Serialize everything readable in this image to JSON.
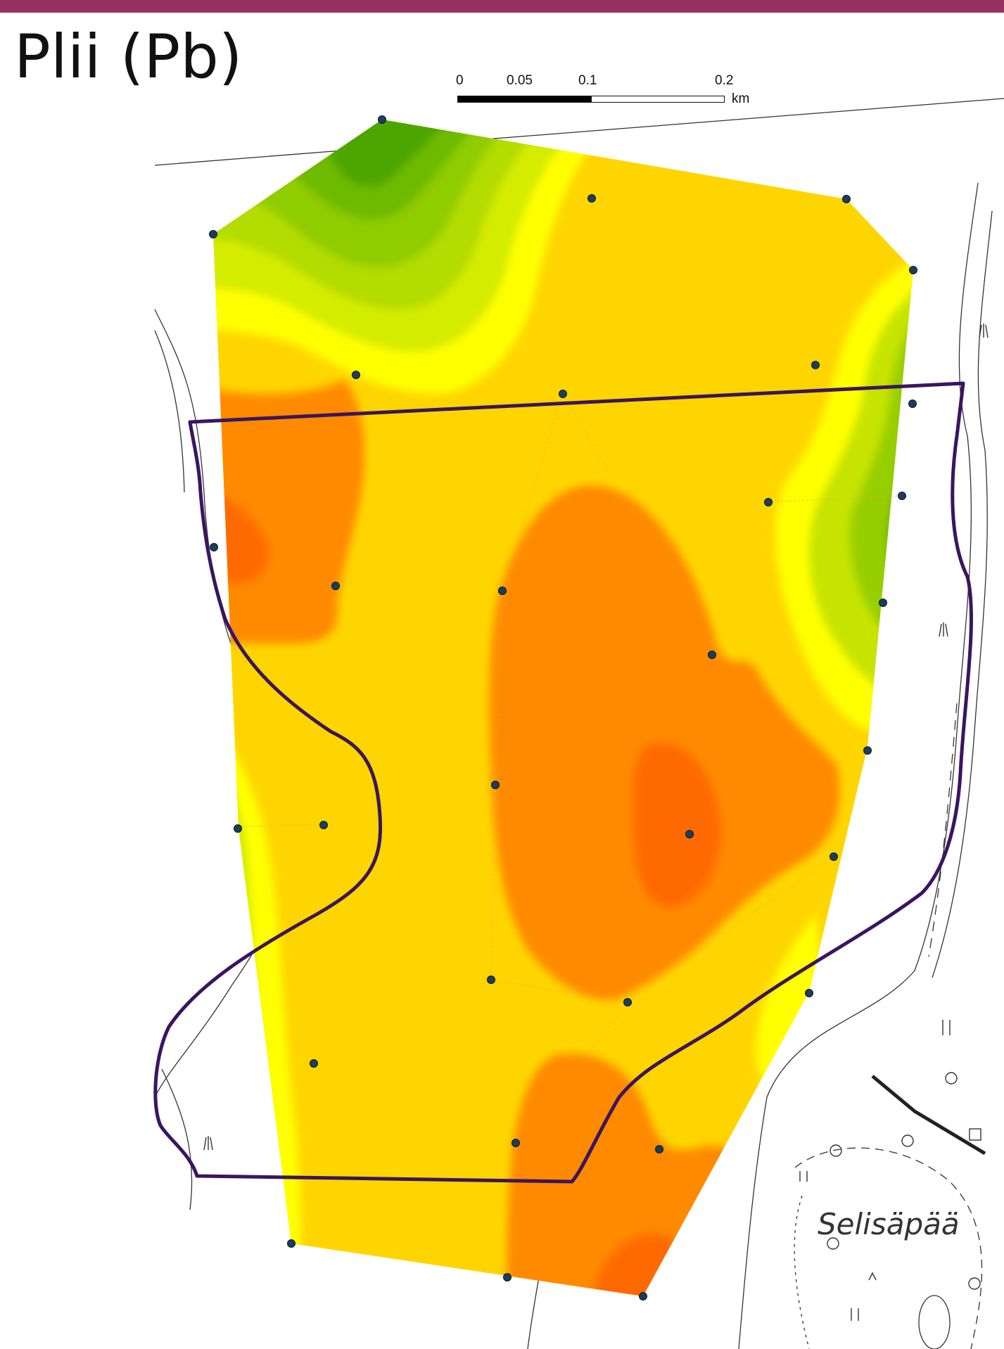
{
  "title": "Plii (Pb)",
  "scalebar": {
    "ticks": [
      "0",
      "0.05",
      "0.1",
      "0.2"
    ],
    "unit": "km"
  },
  "place_label": "Selisäpää",
  "colors": {
    "header_bar": "#96305f",
    "boundary": "#3a1560",
    "sample_point": "#1c3d5e",
    "scale_low": "#3f9a08",
    "scale_mid": "#ffd500",
    "scale_high": "#ff5f00"
  },
  "legend_note": ""
}
